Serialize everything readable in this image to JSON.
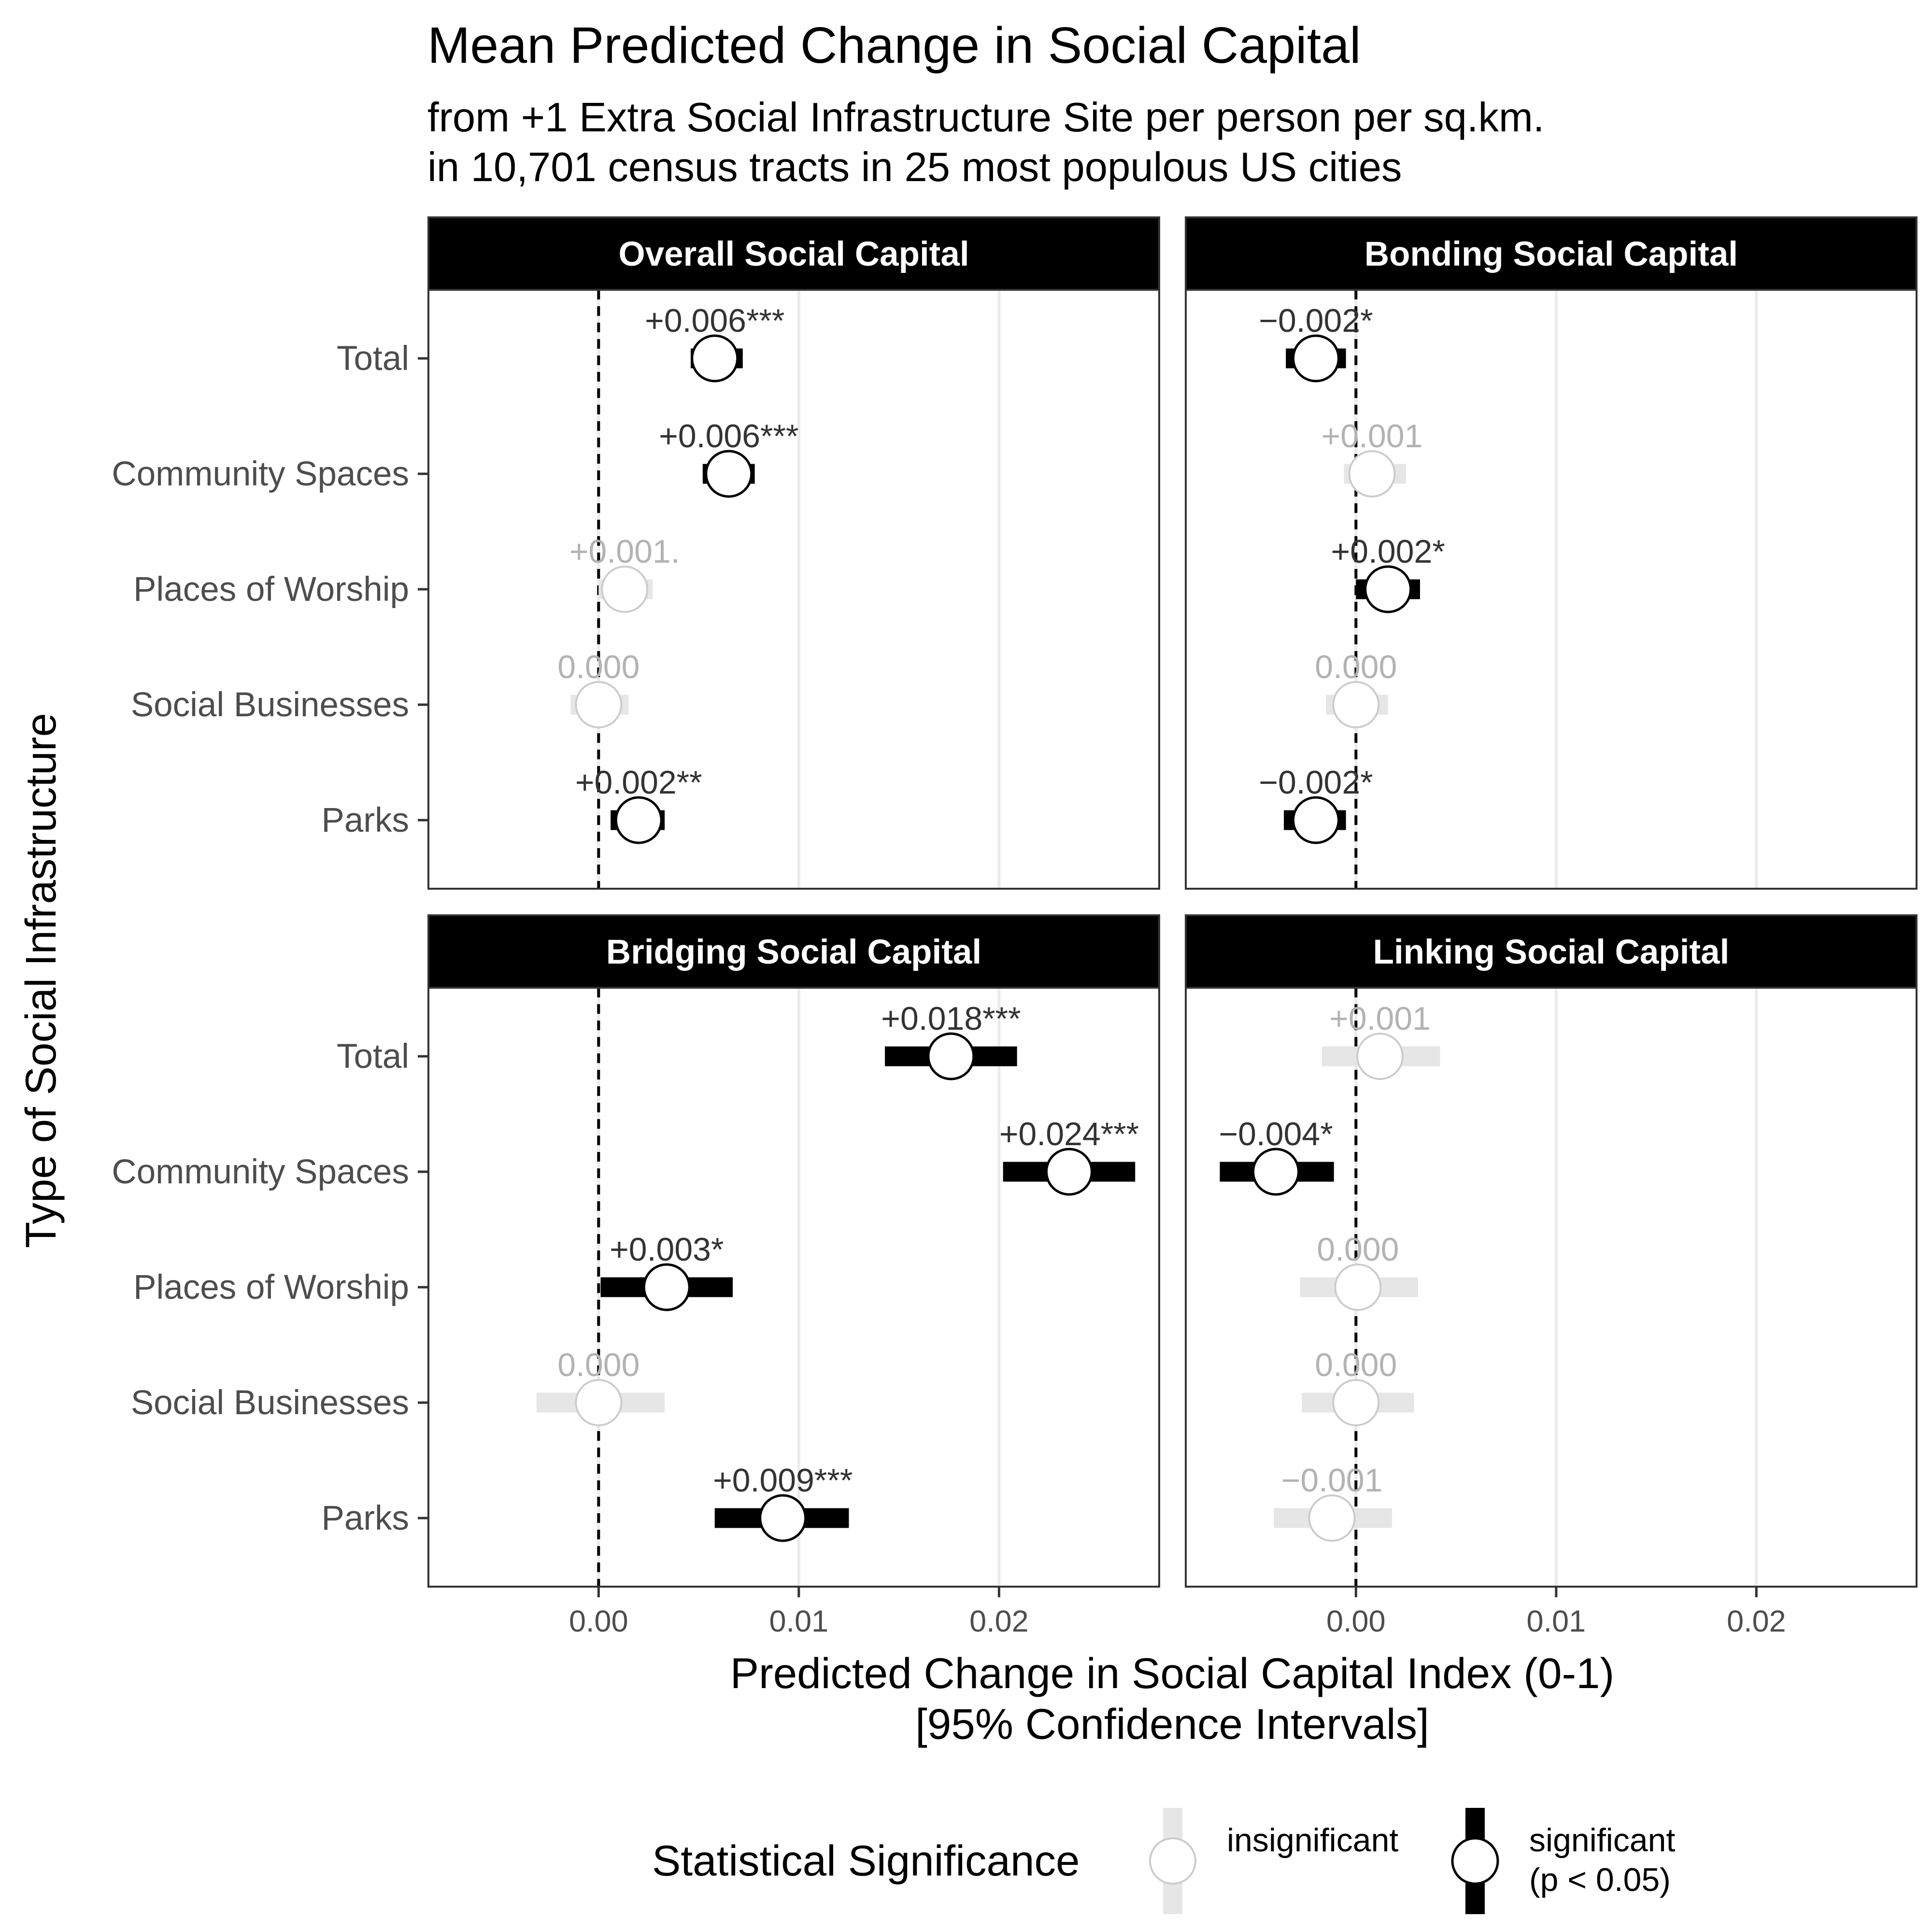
{
  "chart_data": {
    "type": "forest",
    "title": "Mean Predicted Change in Social Capital",
    "subtitle_lines": [
      "from +1 Extra Social Infrastructure Site per person per sq.km.",
      "in 10,701 census tracts in 25 most populous US cities"
    ],
    "xlabel_lines": [
      "Predicted Change in Social Capital Index (0-1)",
      "[95% Confidence Intervals]"
    ],
    "ylabel": "Type of Social Infrastructure",
    "xlim": [
      -0.0085,
      0.028
    ],
    "xticks": [
      0.0,
      0.01,
      0.02
    ],
    "xtick_labels": [
      "0.00",
      "0.01",
      "0.02"
    ],
    "reference_line_x": 0,
    "categories": [
      "Total",
      "Community Spaces",
      "Places of Worship",
      "Social Businesses",
      "Parks"
    ],
    "colors": {
      "significant": "#000000",
      "insignificant_bar": "#e6e6e6",
      "insignificant_text": "#b3b3b3",
      "label_significant": "#333333",
      "strip": "#000000",
      "grid": "#ebebeb"
    },
    "panels": [
      {
        "name": "Overall Social Capital",
        "points": [
          {
            "category": "Total",
            "estimate": 0.0058,
            "lower": 0.0046,
            "upper": 0.0072,
            "significant": true,
            "label": "+0.006***"
          },
          {
            "category": "Community Spaces",
            "estimate": 0.0065,
            "lower": 0.0052,
            "upper": 0.0078,
            "significant": true,
            "label": "+0.006***"
          },
          {
            "category": "Places of Worship",
            "estimate": 0.0013,
            "lower": 0.0,
            "upper": 0.0027,
            "significant": false,
            "label": "+0.001."
          },
          {
            "category": "Social Businesses",
            "estimate": 0.0,
            "lower": -0.0014,
            "upper": 0.0015,
            "significant": false,
            "label": "0.000"
          },
          {
            "category": "Parks",
            "estimate": 0.002,
            "lower": 0.0006,
            "upper": 0.0033,
            "significant": true,
            "label": "+0.002**"
          }
        ]
      },
      {
        "name": "Bonding Social Capital",
        "points": [
          {
            "category": "Total",
            "estimate": -0.002,
            "lower": -0.0035,
            "upper": -0.0005,
            "significant": true,
            "label": "−0.002*"
          },
          {
            "category": "Community Spaces",
            "estimate": 0.0008,
            "lower": -0.0006,
            "upper": 0.0025,
            "significant": false,
            "label": "+0.001"
          },
          {
            "category": "Places of Worship",
            "estimate": 0.0016,
            "lower": 0.0,
            "upper": 0.0032,
            "significant": true,
            "label": "+0.002*"
          },
          {
            "category": "Social Businesses",
            "estimate": 0.0,
            "lower": -0.0015,
            "upper": 0.0016,
            "significant": false,
            "label": "0.000"
          },
          {
            "category": "Parks",
            "estimate": -0.002,
            "lower": -0.0036,
            "upper": -0.0005,
            "significant": true,
            "label": "−0.002*"
          }
        ]
      },
      {
        "name": "Bridging Social Capital",
        "points": [
          {
            "category": "Total",
            "estimate": 0.0176,
            "lower": 0.0143,
            "upper": 0.0209,
            "significant": true,
            "label": "+0.018***"
          },
          {
            "category": "Community Spaces",
            "estimate": 0.0235,
            "lower": 0.0202,
            "upper": 0.0268,
            "significant": true,
            "label": "+0.024***"
          },
          {
            "category": "Places of Worship",
            "estimate": 0.0034,
            "lower": 0.0001,
            "upper": 0.0067,
            "significant": true,
            "label": "+0.003*"
          },
          {
            "category": "Social Businesses",
            "estimate": 0.0,
            "lower": -0.0031,
            "upper": 0.0033,
            "significant": false,
            "label": "0.000"
          },
          {
            "category": "Parks",
            "estimate": 0.0092,
            "lower": 0.0058,
            "upper": 0.0125,
            "significant": true,
            "label": "+0.009***"
          }
        ]
      },
      {
        "name": "Linking Social Capital",
        "points": [
          {
            "category": "Total",
            "estimate": 0.0012,
            "lower": -0.0017,
            "upper": 0.0042,
            "significant": false,
            "label": "+0.001"
          },
          {
            "category": "Community Spaces",
            "estimate": -0.004,
            "lower": -0.0068,
            "upper": -0.0011,
            "significant": true,
            "label": "−0.004*"
          },
          {
            "category": "Places of Worship",
            "estimate": 0.0001,
            "lower": -0.0028,
            "upper": 0.0031,
            "significant": false,
            "label": "0.000"
          },
          {
            "category": "Social Businesses",
            "estimate": 0.0,
            "lower": -0.0027,
            "upper": 0.0029,
            "significant": false,
            "label": "0.000"
          },
          {
            "category": "Parks",
            "estimate": -0.0012,
            "lower": -0.0041,
            "upper": 0.0018,
            "significant": false,
            "label": "−0.001"
          }
        ]
      }
    ],
    "legend": {
      "title": "Statistical Significance",
      "position": "bottom",
      "items": [
        {
          "label_lines": [
            "insignificant"
          ],
          "significant": false
        },
        {
          "label_lines": [
            "significant",
            "(p < 0.05)"
          ],
          "significant": true
        }
      ]
    }
  }
}
